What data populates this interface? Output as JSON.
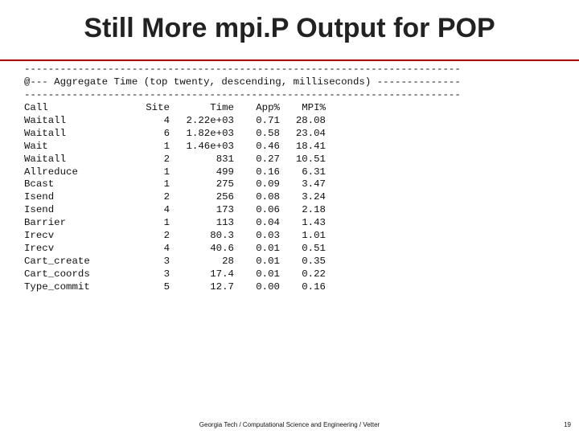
{
  "header": {
    "title": "Still More mpi.P Output for POP"
  },
  "listing": {
    "rule_top": "-------------------------------------------------------------------------",
    "banner": "@--- Aggregate Time (top twenty, descending, milliseconds) --------------",
    "rule_bottom": "-------------------------------------------------------------------------"
  },
  "table": {
    "columns": [
      "Call",
      "Site",
      "Time",
      "App%",
      "MPI%"
    ],
    "rows": [
      [
        "Waitall",
        "4",
        "2.22e+03",
        "0.71",
        "28.08"
      ],
      [
        "Waitall",
        "6",
        "1.82e+03",
        "0.58",
        "23.04"
      ],
      [
        "Wait",
        "1",
        "1.46e+03",
        "0.46",
        "18.41"
      ],
      [
        "Waitall",
        "2",
        "831",
        "0.27",
        "10.51"
      ],
      [
        "Allreduce",
        "1",
        "499",
        "0.16",
        "6.31"
      ],
      [
        "Bcast",
        "1",
        "275",
        "0.09",
        "3.47"
      ],
      [
        "Isend",
        "2",
        "256",
        "0.08",
        "3.24"
      ],
      [
        "Isend",
        "4",
        "173",
        "0.06",
        "2.18"
      ],
      [
        "Barrier",
        "1",
        "113",
        "0.04",
        "1.43"
      ],
      [
        "Irecv",
        "2",
        "80.3",
        "0.03",
        "1.01"
      ],
      [
        "Irecv",
        "4",
        "40.6",
        "0.01",
        "0.51"
      ],
      [
        "Cart_create",
        "3",
        "28",
        "0.01",
        "0.35"
      ],
      [
        "Cart_coords",
        "3",
        "17.4",
        "0.01",
        "0.22"
      ],
      [
        "Type_commit",
        "5",
        "12.7",
        "0.00",
        "0.16"
      ]
    ]
  },
  "footer": {
    "text": "Georgia Tech / Computational Science and Engineering / Vetter",
    "page": "19"
  }
}
